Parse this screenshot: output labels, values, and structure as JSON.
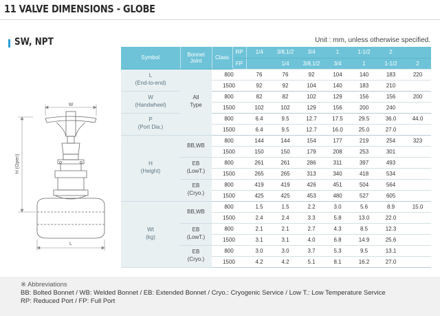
{
  "page": {
    "title": "11 VALVE DIMENSIONS - GLOBE",
    "section_title": "SW, NPT",
    "unit_note": "Unit : mm, unless otherwise specified."
  },
  "drawing": {
    "width_label": "W",
    "height_label": "H (Open)",
    "length_label": "L"
  },
  "table": {
    "header": {
      "symbol": "Symbol",
      "bonnet_joint": [
        "Bonnet",
        "Joint"
      ],
      "class": "Class",
      "rp": "RP",
      "fp": "FP",
      "rp_sizes": [
        "1/4",
        "3/8,1/2",
        "3/4",
        "1",
        "1-1/2",
        "2",
        ""
      ],
      "fp_sizes": [
        "",
        "1/4",
        "3/8,1/2",
        "3/4",
        "1",
        "1-1/2",
        "2"
      ]
    },
    "groups": [
      {
        "symbol": [
          "L",
          "(End-to-end)"
        ],
        "rows": [
          {
            "class": "800",
            "values": [
              "76",
              "76",
              "92",
              "104",
              "140",
              "183",
              "220"
            ]
          },
          {
            "class": "1500",
            "values": [
              "92",
              "92",
              "104",
              "140",
              "183",
              "210",
              ""
            ]
          }
        ]
      },
      {
        "symbol": [
          "W",
          "(Handwheel)"
        ],
        "rows": [
          {
            "class": "800",
            "values": [
              "82",
              "82",
              "102",
              "129",
              "156",
              "156",
              "200"
            ]
          },
          {
            "class": "1500",
            "values": [
              "102",
              "102",
              "129",
              "156",
              "200",
              "240",
              ""
            ]
          }
        ]
      },
      {
        "symbol": [
          "P",
          "(Port Dia.)"
        ],
        "rows": [
          {
            "class": "800",
            "values": [
              "6.4",
              "9.5",
              "12.7",
              "17.5",
              "29.5",
              "36.0",
              "44.0"
            ]
          },
          {
            "class": "1500",
            "values": [
              "6.4",
              "9.5",
              "12.7",
              "16.0",
              "25.0",
              "27.0",
              ""
            ]
          }
        ]
      },
      {
        "symbol": [
          "H",
          "(Height)"
        ],
        "rows": [
          {
            "bonnet": [
              "BB,WB"
            ],
            "class": "800",
            "values": [
              "144",
              "144",
              "154",
              "177",
              "219",
              "254",
              "323"
            ]
          },
          {
            "class": "1500",
            "values": [
              "150",
              "150",
              "179",
              "208",
              "253",
              "301",
              ""
            ]
          },
          {
            "bonnet": [
              "EB",
              "(LowT.)"
            ],
            "class": "800",
            "values": [
              "261",
              "261",
              "286",
              "311",
              "397",
              "493",
              ""
            ]
          },
          {
            "class": "1500",
            "values": [
              "265",
              "265",
              "313",
              "340",
              "418",
              "534",
              ""
            ]
          },
          {
            "bonnet": [
              "EB",
              "(Cryo.)"
            ],
            "class": "800",
            "values": [
              "419",
              "419",
              "426",
              "451",
              "504",
              "564",
              ""
            ]
          },
          {
            "class": "1500",
            "values": [
              "425",
              "425",
              "453",
              "480",
              "527",
              "605",
              ""
            ]
          }
        ]
      },
      {
        "symbol": [
          "Wt",
          "(kg)"
        ],
        "rows": [
          {
            "bonnet": [
              "BB,WB"
            ],
            "class": "800",
            "values": [
              "1.5",
              "1.5",
              "2.2",
              "3.0",
              "5.6",
              "8.9",
              "15.0"
            ]
          },
          {
            "class": "1500",
            "values": [
              "2.4",
              "2.4",
              "3.3",
              "5.8",
              "13.0",
              "22.0",
              ""
            ]
          },
          {
            "bonnet": [
              "EB",
              "(LowT.)"
            ],
            "class": "800",
            "values": [
              "2.1",
              "2.1",
              "2.7",
              "4.3",
              "8.5",
              "12.3",
              ""
            ]
          },
          {
            "class": "1500",
            "values": [
              "3.1",
              "3.1",
              "4.0",
              "6.8",
              "14.9",
              "25.6",
              ""
            ]
          },
          {
            "bonnet": [
              "EB",
              "(Cryo.)"
            ],
            "class": "800",
            "values": [
              "3.0",
              "3.0",
              "3.7",
              "5.3",
              "9.5",
              "13.1",
              ""
            ]
          },
          {
            "class": "1500",
            "values": [
              "4.2",
              "4.2",
              "5.1",
              "8.1",
              "16.2",
              "27.0",
              ""
            ]
          }
        ]
      }
    ],
    "all_type_label": [
      "All",
      "Type"
    ]
  },
  "abbreviations": {
    "title": "※ Abbreviations",
    "lines": [
      "BB: Bolted Bonnet / WB: Welded Bonnet / EB: Extended Bonnet / Cryo.: Cryogenic Service / Low T.: Low Temperature Service",
      "RP: Reduced Port / FP: Full Port"
    ]
  },
  "colors": {
    "header_bg": "#6ec3d8",
    "label_bg": "#e8f0f2",
    "accent": "#2a9fd6",
    "note_bg": "#f1f1f1"
  }
}
